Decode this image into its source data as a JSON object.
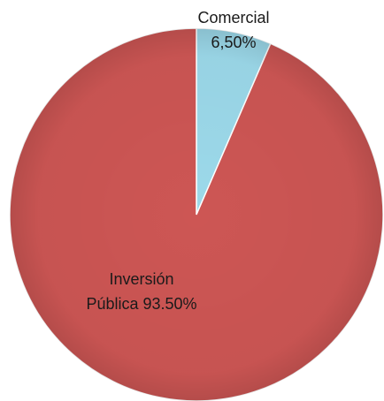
{
  "chart_data": {
    "type": "pie",
    "categories": [
      "Comercial",
      "Inversión Pública"
    ],
    "values": [
      6.5,
      93.5
    ],
    "value_labels": [
      "6,50%",
      "93.50%"
    ],
    "colors": [
      "#9cd9ea",
      "#cd5654"
    ]
  }
}
